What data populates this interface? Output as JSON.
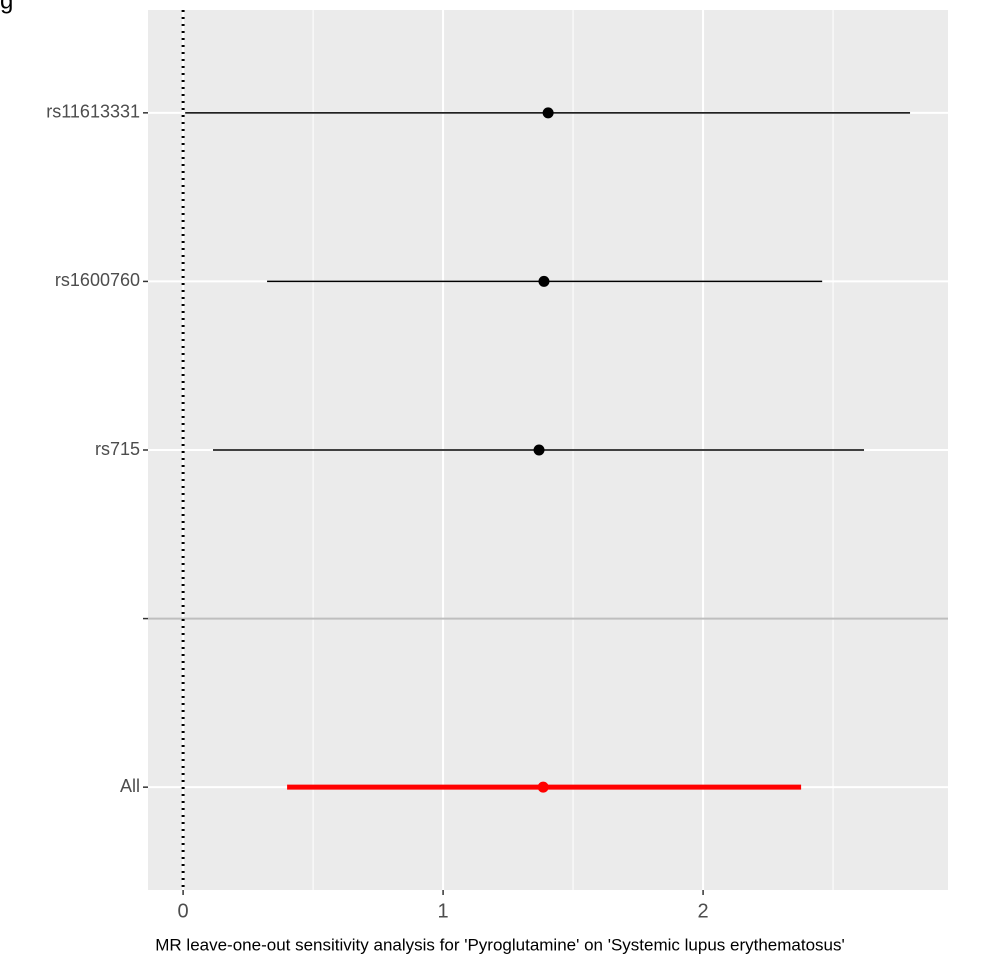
{
  "chart_data": {
    "type": "forest",
    "corner_text": "g",
    "x_label": "MR leave-one-out sensitivity analysis for 'Pyroglutamine' on 'Systemic lupus erythematosus'",
    "categories": [
      "rs11613331",
      "rs1600760",
      "rs715",
      null,
      "All"
    ],
    "values": [
      1.404,
      1.388,
      1.369,
      null,
      1.385
    ],
    "lower": [
      0.008,
      0.323,
      0.115,
      null,
      0.4
    ],
    "upper": [
      2.796,
      2.458,
      2.619,
      null,
      2.377
    ],
    "colors": [
      "#000000",
      "#000000",
      "#000000",
      null,
      "#ff0000"
    ],
    "xlim": [
      -0.135,
      2.942
    ],
    "xticks": [
      0,
      1,
      2
    ],
    "xminorticks": [
      0.5,
      1.5,
      2.5
    ],
    "reference_line": 0,
    "grid": true
  }
}
